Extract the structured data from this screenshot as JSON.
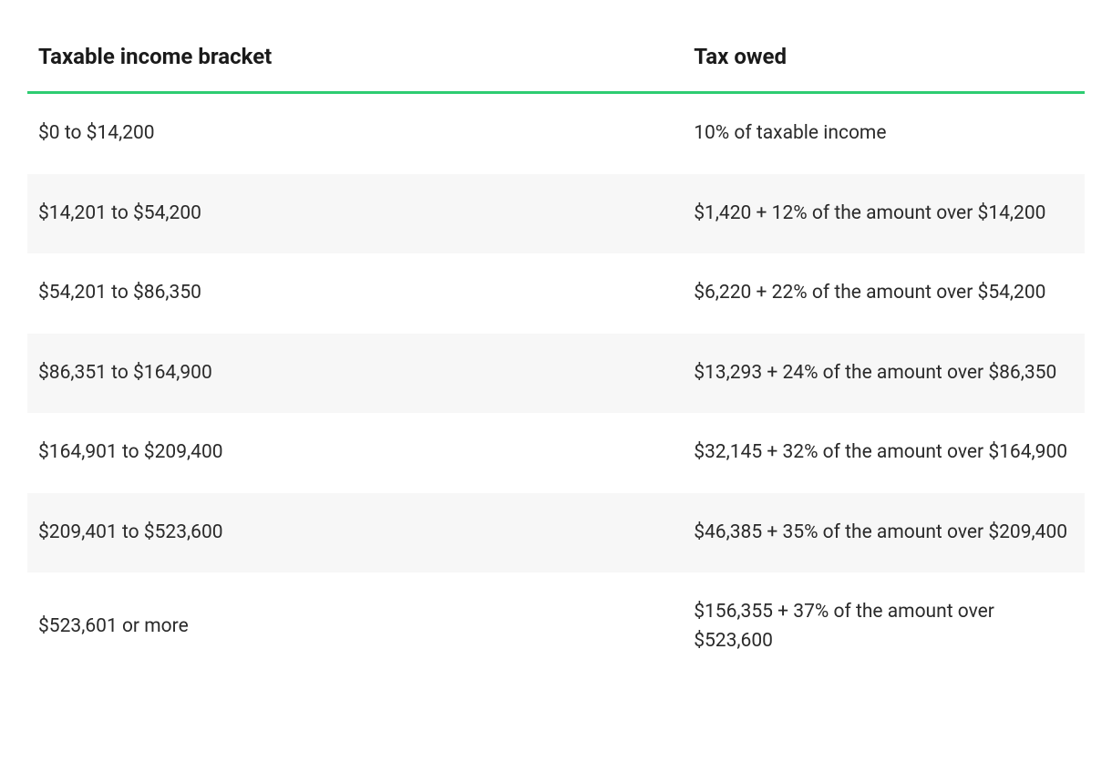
{
  "table": {
    "columns": [
      "Taxable income bracket",
      "Tax owed"
    ],
    "column_widths": [
      "62%",
      "38%"
    ],
    "header_border_color": "#2ecc71",
    "header_font_size": 24,
    "header_font_weight": 700,
    "cell_font_size": 21,
    "text_color": "#1a1a1a",
    "cell_text_color": "#2a2a2a",
    "row_alt_bg": "#f7f7f7",
    "background_color": "#ffffff",
    "rows": [
      {
        "bracket": "$0 to $14,200",
        "owed": "10% of taxable income"
      },
      {
        "bracket": "$14,201 to $54,200",
        "owed": "$1,420 + 12% of the amount over $14,200"
      },
      {
        "bracket": "$54,201 to $86,350",
        "owed": "$6,220 + 22% of the amount over $54,200"
      },
      {
        "bracket": "$86,351 to $164,900",
        "owed": "$13,293 + 24% of the amount over $86,350"
      },
      {
        "bracket": "$164,901 to $209,400",
        "owed": "$32,145 + 32% of the amount over $164,900"
      },
      {
        "bracket": "$209,401 to $523,600",
        "owed": "$46,385 + 35% of the amount over $209,400"
      },
      {
        "bracket": "$523,601 or more",
        "owed": "$156,355 + 37% of the amount over $523,600"
      }
    ]
  }
}
